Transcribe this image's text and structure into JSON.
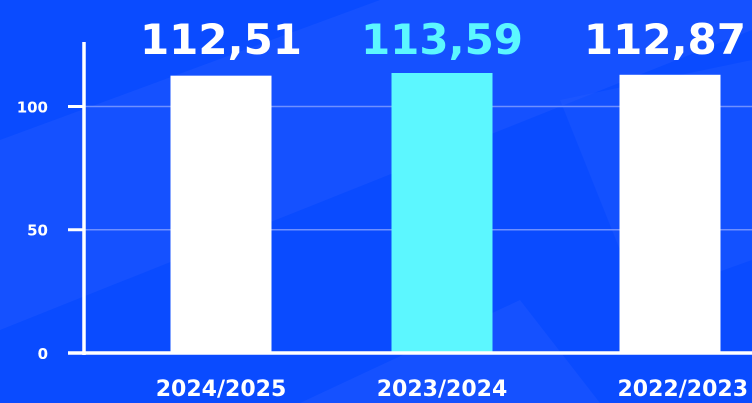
{
  "chart_data": {
    "type": "bar",
    "categories": [
      "2024/2025",
      "2023/2024",
      "2022/2023"
    ],
    "values": [
      112.51,
      113.59,
      112.87
    ],
    "value_labels": [
      "112,51",
      "113,59",
      "112,87"
    ],
    "highlight_index": 1,
    "ylim": [
      0,
      113.59
    ],
    "yticks": [
      0,
      50,
      100
    ],
    "grid": true,
    "legend": "none",
    "title": "",
    "xlabel": "",
    "ylabel": ""
  },
  "colors": {
    "background": "#0a4bff",
    "background_shape": "#2a5fff",
    "bar": "#ffffff",
    "highlight": "#5cf7ff",
    "axis": "#ffffff",
    "grid": "#6f90ff",
    "text": "#ffffff"
  }
}
